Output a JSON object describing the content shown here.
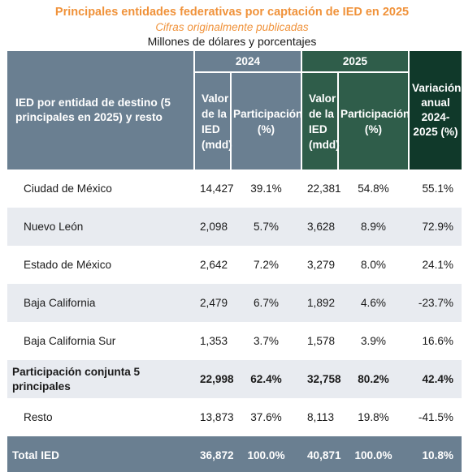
{
  "header": {
    "title": "Principales entidades federativas por captación de IED en 2025",
    "subtitle": "Cifras originalmente publicadas",
    "units": "Millones de dólares y porcentajes"
  },
  "table": {
    "row_header": "IED por entidad de destino (5 principales en 2025) y resto",
    "year_2024": "2024",
    "year_2025": "2025",
    "variation": "Variación anual 2024-2025 (%)",
    "col_value": "Valor de la IED (mdd)",
    "col_share": "Participación (%)",
    "rows": [
      {
        "name": "Ciudad de México",
        "v2024": "14,427",
        "p2024": "39.1%",
        "v2025": "22,381",
        "p2025": "54.8%",
        "var": "55.1%"
      },
      {
        "name": "Nuevo León",
        "v2024": "2,098",
        "p2024": "5.7%",
        "v2025": "3,628",
        "p2025": "8.9%",
        "var": "72.9%"
      },
      {
        "name": "Estado de México",
        "v2024": "2,642",
        "p2024": "7.2%",
        "v2025": "3,279",
        "p2025": "8.0%",
        "var": "24.1%"
      },
      {
        "name": "Baja California",
        "v2024": "2,479",
        "p2024": "6.7%",
        "v2025": "1,892",
        "p2025": "4.6%",
        "var": "-23.7%"
      },
      {
        "name": "Baja California Sur",
        "v2024": "1,353",
        "p2024": "3.7%",
        "v2025": "1,578",
        "p2025": "3.9%",
        "var": "16.6%"
      },
      {
        "name": "Participación conjunta 5 principales",
        "v2024": "22,998",
        "p2024": "62.4%",
        "v2025": "32,758",
        "p2025": "80.2%",
        "var": "42.4%"
      },
      {
        "name": "Resto",
        "v2024": "13,873",
        "p2024": "37.6%",
        "v2025": "8,113",
        "p2025": "19.8%",
        "var": "-41.5%"
      }
    ],
    "total": {
      "name": "Total IED",
      "v2024": "36,872",
      "p2024": "100.0%",
      "v2025": "40,871",
      "p2025": "100.0%",
      "var": "10.8%"
    }
  },
  "colors": {
    "title": "#f0923a",
    "header_2024": "#6a7f91",
    "header_2025": "#2f5d4a",
    "header_variation": "#10392a",
    "stripe": "#e8ebf0"
  }
}
